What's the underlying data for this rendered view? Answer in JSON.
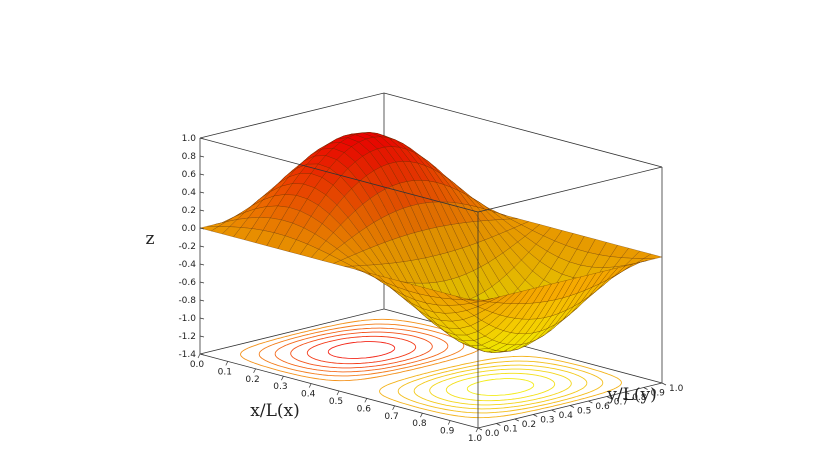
{
  "chart_data": {
    "type": "surface3d",
    "title": "",
    "xlabel": "x/L(x)",
    "ylabel": "y/L(y)",
    "zlabel": "z",
    "xlim": [
      0.0,
      1.0
    ],
    "ylim": [
      0.0,
      1.0
    ],
    "zlim": [
      -1.4,
      1.0
    ],
    "x_ticks": [
      "0.0",
      "0.1",
      "0.2",
      "0.3",
      "0.4",
      "0.5",
      "0.6",
      "0.7",
      "0.8",
      "0.9",
      "1.0"
    ],
    "y_ticks": [
      "0.0",
      "0.1",
      "0.2",
      "0.3",
      "0.4",
      "0.5",
      "0.6",
      "0.7",
      "0.8",
      "0.9",
      "1.0"
    ],
    "z_ticks": [
      "-1.4",
      "-1.2",
      "-1.0",
      "-0.8",
      "-0.6",
      "-0.4",
      "-0.2",
      "0.0",
      "0.2",
      "0.4",
      "0.6",
      "0.8",
      "1.0"
    ],
    "surface": {
      "function": "z = sin(2πx)·sin(πy)",
      "grid_lines": 25,
      "colormap": [
        "#ffff00",
        "#ffa500",
        "#ff0000"
      ]
    },
    "contours": {
      "projected_on": "z=-1.4 floor",
      "levels": [
        -0.9,
        -0.75,
        -0.6,
        -0.45,
        -0.3,
        -0.15,
        0.15,
        0.3,
        0.45,
        0.6,
        0.75,
        0.9
      ]
    },
    "grid": false,
    "legend": "none"
  }
}
